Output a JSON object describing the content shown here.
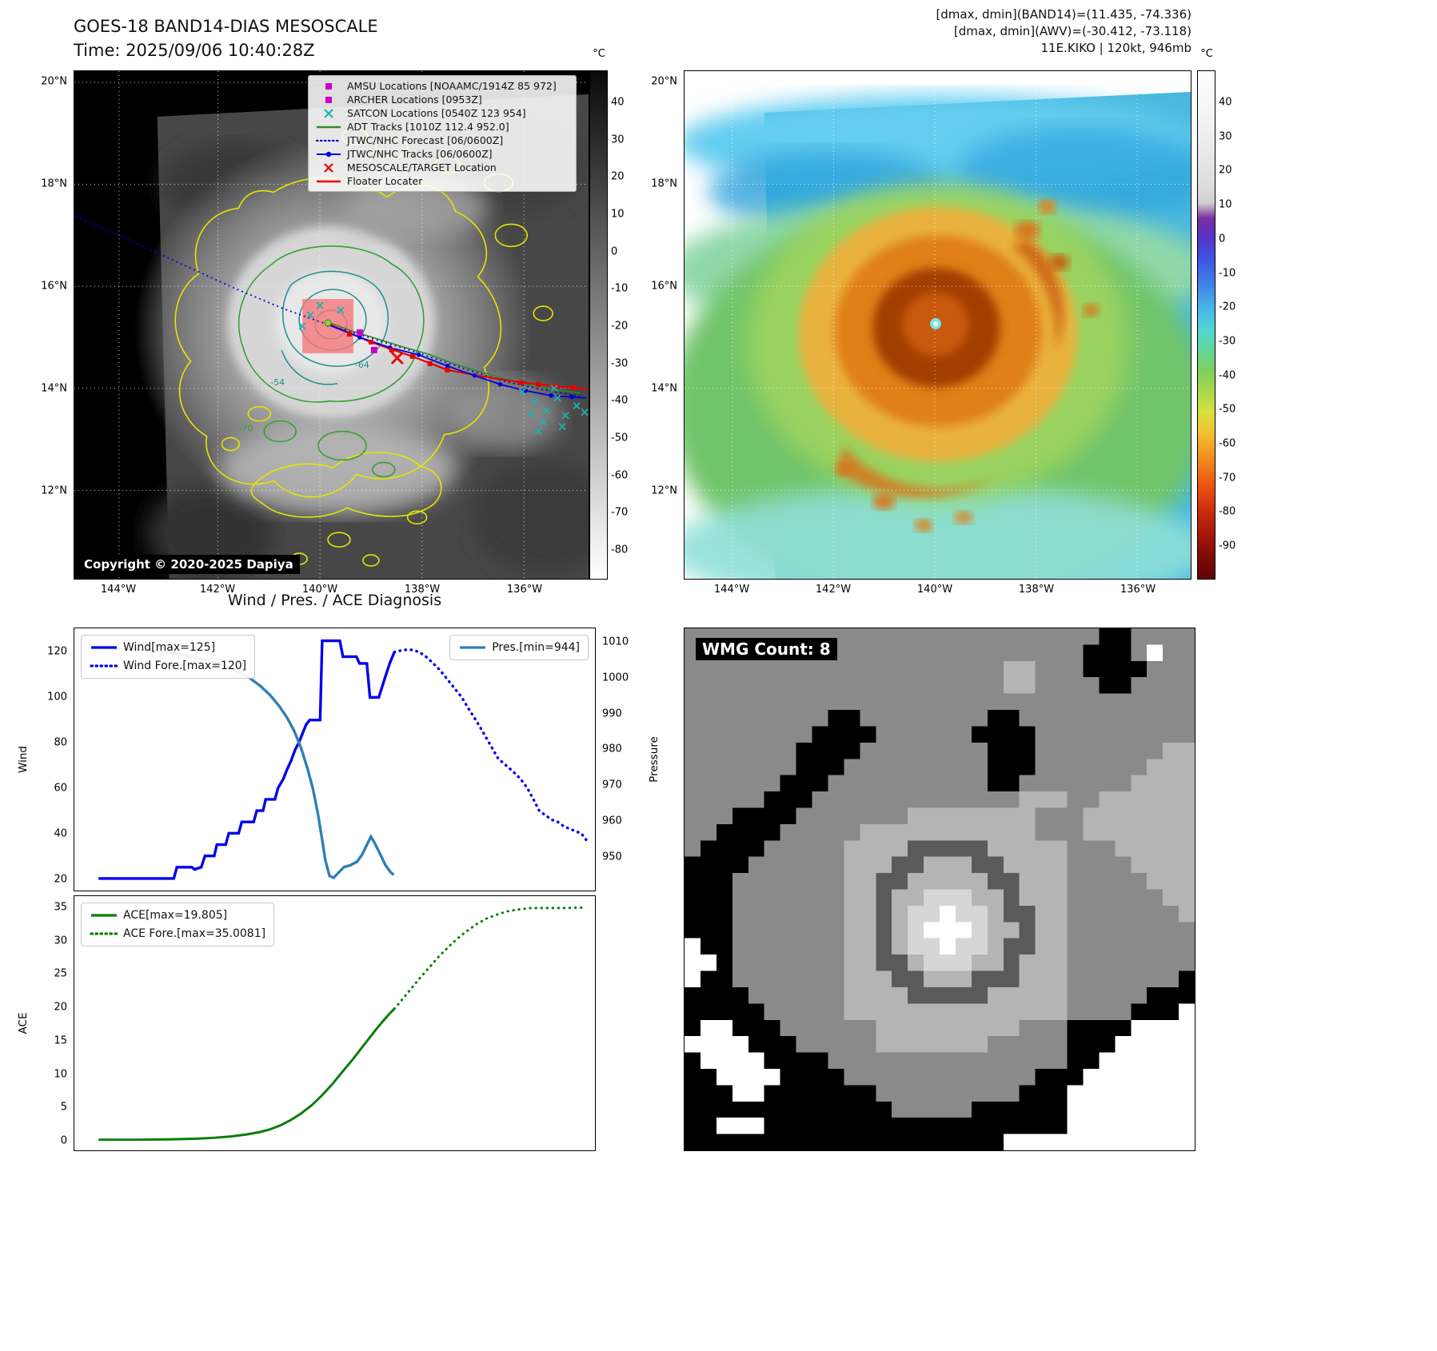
{
  "header": {
    "tl_title": "GOES-18 BAND14-DIAS MESOSCALE",
    "tl_subtitle": "Time: 2025/09/06 10:40:28Z",
    "tr_lines": [
      "[dmax, dmin](BAND14)=(11.435, -74.336)",
      "[dmax, dmin](AWV)=(-30.412, -73.118)",
      "11E.KIKO | 120kt, 946mb"
    ]
  },
  "map_left": {
    "legend": [
      {
        "label": "AMSU Locations [NOAAMC/1914Z 85 972]",
        "marker": "square",
        "color": "#cc00cc"
      },
      {
        "label": "ARCHER Locations [0953Z]",
        "marker": "square",
        "color": "#cc00cc"
      },
      {
        "label": "SATCON Locations [0540Z 123 954]",
        "marker": "x",
        "color": "#20b2aa"
      },
      {
        "label": "ADT Tracks [1010Z 112.4 952.0]",
        "marker": "line",
        "color": "#2e8b2e"
      },
      {
        "label": "JTWC/NHC Forecast [06/0600Z]",
        "marker": "dotted",
        "color": "#0000dd"
      },
      {
        "label": "JTWC/NHC Tracks [06/0600Z]",
        "marker": "line-dot",
        "color": "#0000dd"
      },
      {
        "label": "MESOSCALE/TARGET Location",
        "marker": "x",
        "color": "#e80000"
      },
      {
        "label": "Floater Locater",
        "marker": "line",
        "color": "#e80000"
      }
    ],
    "lat_ticks": [
      "20°N",
      "18°N",
      "16°N",
      "14°N",
      "12°N"
    ],
    "lon_ticks": [
      "144°W",
      "142°W",
      "140°W",
      "138°W",
      "136°W"
    ],
    "contour_labels": {
      "a": "-64",
      "b": "-54",
      "c": "-70"
    },
    "copyright": "Copyright © 2020-2025 Dapiya",
    "colorbar": {
      "unit": "°C",
      "ticks": [
        40,
        30,
        20,
        10,
        0,
        -10,
        -20,
        -30,
        -40,
        -50,
        -60,
        -70,
        -80
      ]
    }
  },
  "map_right": {
    "lat_ticks": [
      "20°N",
      "18°N",
      "16°N",
      "14°N",
      "12°N"
    ],
    "lon_ticks": [
      "144°W",
      "142°W",
      "140°W",
      "138°W",
      "136°W"
    ],
    "colorbar": {
      "unit": "°C",
      "ticks": [
        40,
        30,
        20,
        10,
        0,
        -10,
        -20,
        -30,
        -40,
        -50,
        -60,
        -70,
        -80,
        -90
      ]
    }
  },
  "chart_data": [
    {
      "type": "line",
      "title": "Wind / Pres. / ACE Diagnosis",
      "panel": "wind-pressure",
      "ylabel_left": "Wind",
      "ylabel_right": "Pressure",
      "ylim_left": [
        14.7,
        130.5
      ],
      "ylim_right": [
        940.4,
        1014.0
      ],
      "yticks_left": [
        20,
        40,
        60,
        80,
        100,
        120
      ],
      "yticks_right": [
        950,
        960,
        970,
        980,
        990,
        1000,
        1010
      ],
      "x_axis_note": "normalized time 0-1, no x tick labels shown",
      "legend_left": [
        {
          "label": "Wind[max=125]",
          "color": "#0000ee",
          "dotted": false
        },
        {
          "label": "Wind Fore.[max=120]",
          "color": "#0000ee",
          "dotted": true
        }
      ],
      "legend_right": [
        {
          "label": "Pres.[min=944]",
          "color": "#2e7eb8",
          "dotted": false
        }
      ],
      "series": [
        {
          "name": "Wind",
          "axis": "left",
          "color": "#0000ee",
          "width": 3.4,
          "dotted": false,
          "points": [
            [
              0.045,
              20
            ],
            [
              0.12,
              20
            ],
            [
              0.19,
              20
            ],
            [
              0.196,
              25
            ],
            [
              0.225,
              25
            ],
            [
              0.23,
              24
            ],
            [
              0.243,
              25
            ],
            [
              0.25,
              30
            ],
            [
              0.268,
              30
            ],
            [
              0.273,
              35
            ],
            [
              0.29,
              35
            ],
            [
              0.296,
              40
            ],
            [
              0.315,
              40
            ],
            [
              0.321,
              45
            ],
            [
              0.344,
              45
            ],
            [
              0.35,
              50
            ],
            [
              0.362,
              50
            ],
            [
              0.367,
              55
            ],
            [
              0.385,
              55
            ],
            [
              0.391,
              60
            ],
            [
              0.401,
              64
            ],
            [
              0.408,
              68
            ],
            [
              0.416,
              72
            ],
            [
              0.424,
              77
            ],
            [
              0.431,
              80
            ],
            [
              0.438,
              84
            ],
            [
              0.445,
              88
            ],
            [
              0.452,
              90
            ],
            [
              0.472,
              90
            ],
            [
              0.476,
              125
            ],
            [
              0.51,
              125
            ],
            [
              0.516,
              118
            ],
            [
              0.542,
              118
            ],
            [
              0.548,
              115
            ],
            [
              0.562,
              115
            ],
            [
              0.568,
              100
            ],
            [
              0.585,
              100
            ],
            [
              0.596,
              108
            ],
            [
              0.606,
              115
            ],
            [
              0.615,
              120
            ]
          ]
        },
        {
          "name": "Wind Fore.",
          "axis": "left",
          "color": "#0000ee",
          "width": 3.4,
          "dotted": true,
          "points": [
            [
              0.615,
              120
            ],
            [
              0.633,
              121
            ],
            [
              0.65,
              121
            ],
            [
              0.663,
              120
            ],
            [
              0.676,
              118
            ],
            [
              0.69,
              115
            ],
            [
              0.703,
              112
            ],
            [
              0.717,
              108
            ],
            [
              0.731,
              104
            ],
            [
              0.745,
              100
            ],
            [
              0.758,
              95
            ],
            [
              0.772,
              90
            ],
            [
              0.785,
              85
            ],
            [
              0.8,
              79
            ],
            [
              0.815,
              73
            ],
            [
              0.83,
              70
            ],
            [
              0.845,
              67
            ],
            [
              0.858,
              64
            ],
            [
              0.871,
              60
            ],
            [
              0.883,
              55
            ],
            [
              0.894,
              50
            ],
            [
              0.906,
              48
            ],
            [
              0.918,
              46
            ],
            [
              0.93,
              45
            ],
            [
              0.942,
              43
            ],
            [
              0.953,
              42
            ],
            [
              0.963,
              41
            ],
            [
              0.975,
              40
            ],
            [
              0.985,
              37
            ]
          ]
        },
        {
          "name": "Pres.",
          "axis": "right",
          "color": "#2e7eb8",
          "width": 3.4,
          "dotted": false,
          "points": [
            [
              0.045,
              1008.5
            ],
            [
              0.1,
              1008.2
            ],
            [
              0.15,
              1007.6
            ],
            [
              0.19,
              1007
            ],
            [
              0.22,
              1006.2
            ],
            [
              0.25,
              1005.2
            ],
            [
              0.28,
              1004
            ],
            [
              0.31,
              1002.2
            ],
            [
              0.335,
              1000.2
            ],
            [
              0.357,
              997.8
            ],
            [
              0.376,
              995.2
            ],
            [
              0.393,
              992.2
            ],
            [
              0.408,
              989
            ],
            [
              0.422,
              985.2
            ],
            [
              0.435,
              980.5
            ],
            [
              0.447,
              975
            ],
            [
              0.458,
              969
            ],
            [
              0.467,
              962.5
            ],
            [
              0.475,
              955.5
            ],
            [
              0.482,
              949
            ],
            [
              0.49,
              944.5
            ],
            [
              0.498,
              944
            ],
            [
              0.508,
              945.5
            ],
            [
              0.518,
              947
            ],
            [
              0.53,
              947.5
            ],
            [
              0.543,
              948.5
            ],
            [
              0.553,
              950.5
            ],
            [
              0.563,
              953.5
            ],
            [
              0.57,
              955.5
            ],
            [
              0.578,
              953.5
            ],
            [
              0.588,
              950.5
            ],
            [
              0.598,
              947.5
            ],
            [
              0.608,
              945.5
            ],
            [
              0.614,
              944.8
            ]
          ]
        }
      ]
    },
    {
      "type": "line",
      "panel": "ace",
      "ylabel_left": "ACE",
      "ylim_left": [
        -1.55,
        36.8
      ],
      "yticks_left": [
        0,
        5,
        10,
        15,
        20,
        25,
        30,
        35
      ],
      "legend_left": [
        {
          "label": "ACE[max=19.805]",
          "color": "#0a7d0a",
          "dotted": false
        },
        {
          "label": "ACE Fore.[max=35.0081]",
          "color": "#0a7d0a",
          "dotted": true
        }
      ],
      "series": [
        {
          "name": "ACE",
          "axis": "left",
          "color": "#0a7d0a",
          "width": 3,
          "dotted": false,
          "points": [
            [
              0.045,
              0.05
            ],
            [
              0.12,
              0.05
            ],
            [
              0.18,
              0.1
            ],
            [
              0.23,
              0.2
            ],
            [
              0.27,
              0.35
            ],
            [
              0.3,
              0.55
            ],
            [
              0.33,
              0.85
            ],
            [
              0.355,
              1.2
            ],
            [
              0.375,
              1.6
            ],
            [
              0.395,
              2.2
            ],
            [
              0.415,
              3
            ],
            [
              0.435,
              4
            ],
            [
              0.455,
              5.2
            ],
            [
              0.475,
              6.7
            ],
            [
              0.495,
              8.4
            ],
            [
              0.515,
              10.3
            ],
            [
              0.535,
              12.2
            ],
            [
              0.553,
              14
            ],
            [
              0.568,
              15.5
            ],
            [
              0.582,
              16.9
            ],
            [
              0.595,
              18.1
            ],
            [
              0.605,
              19
            ],
            [
              0.615,
              19.805
            ]
          ]
        },
        {
          "name": "ACE Fore.",
          "axis": "left",
          "color": "#0a7d0a",
          "width": 3,
          "dotted": true,
          "points": [
            [
              0.615,
              19.805
            ],
            [
              0.63,
              21.2
            ],
            [
              0.648,
              22.9
            ],
            [
              0.666,
              24.6
            ],
            [
              0.684,
              26.2
            ],
            [
              0.702,
              27.8
            ],
            [
              0.72,
              29.2
            ],
            [
              0.738,
              30.5
            ],
            [
              0.756,
              31.6
            ],
            [
              0.774,
              32.6
            ],
            [
              0.792,
              33.4
            ],
            [
              0.812,
              34
            ],
            [
              0.832,
              34.5
            ],
            [
              0.855,
              34.8
            ],
            [
              0.878,
              35
            ],
            [
              0.91,
              35
            ],
            [
              0.945,
              35
            ],
            [
              0.985,
              35.1
            ]
          ]
        }
      ]
    }
  ],
  "wmg": {
    "label": "WMG Count: 8",
    "palette": [
      "#000000",
      "#8a8a8a",
      "#b4b4b4",
      "#d6d6d6",
      "#ffffff",
      "#5a5a5a"
    ],
    "grid": [
      "11111111111111111111111111001111",
      "11111111111111111111111110001411",
      "11111111111111111111221110000111",
      "11111111111111111111221111001111",
      "11111111111111111111111111111111",
      "11111111100111111110011111111111",
      "11111111000011111100001111111111",
      "11111110000111111110001111111122",
      "11111110001111111110001111111222",
      "11111100011111111110011111112222",
      "11111000111111111111122211222222",
      "11100001111111222222221112222222",
      "11000011111222222222221112222222",
      "10000111112222555552222211122222",
      "00001111112225522255222211112222",
      "00011111112255222225522211111222",
      "00011111112252233322522211111122",
      "00011111112252334332552211111112",
      "00011111112252344432252211111111",
      "40011111112252334332552211111111",
      "44011111112255233322522211111111",
      "40011111112225522255522211111110",
      "00001111112222555552222211111000",
      "00000111112222222222222211110004",
      "04400011111122222222211100004444",
      "44440001111122222221111100044444",
      "04444000011111111111111100444444",
      "00444400001111111111110004444444",
      "00044000000011111111100044444444",
      "00000000000001111100000044444444",
      "00444000000000000000000044444444",
      "00000000000000000000444444444444"
    ]
  }
}
